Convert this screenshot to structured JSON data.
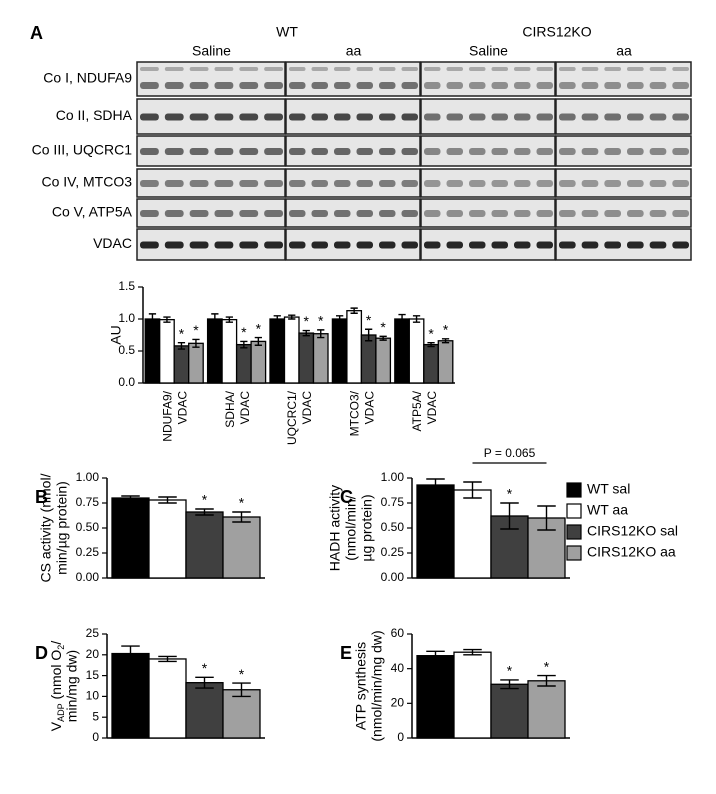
{
  "blot": {
    "panel": "A",
    "groups": [
      "WT",
      "CIRS12KO"
    ],
    "treatments": [
      "Saline",
      "aa",
      "Saline",
      "aa"
    ],
    "rows": [
      "Co I, NDUFA9",
      "Co II, SDHA",
      "Co III, UQCRC1",
      "Co IV, MTCO3",
      "Co V, ATP5A",
      "VDAC"
    ]
  },
  "legend": [
    {
      "name": "WT sal",
      "color": "#000000"
    },
    {
      "name": "WT aa",
      "color": "#ffffff"
    },
    {
      "name": "CIRS12KO sal",
      "color": "#404040"
    },
    {
      "name": "CIRS12KO aa",
      "color": "#a0a0a0"
    }
  ],
  "chart_data": [
    {
      "type": "bar",
      "ylabel": [
        "AU"
      ],
      "categories": [
        [
          "NDUFA9/",
          "VDAC"
        ],
        [
          "SDHA/",
          "VDAC"
        ],
        [
          "UQCRC1/",
          "VDAC"
        ],
        [
          "MTCO3/",
          "VDAC"
        ],
        [
          "ATP5A/",
          "VDAC"
        ]
      ],
      "series": [
        {
          "values": [
            1.0,
            1.0,
            1.0,
            1.0,
            1.0
          ],
          "errors": [
            0.08,
            0.08,
            0.05,
            0.05,
            0.07
          ]
        },
        {
          "values": [
            0.99,
            0.99,
            1.03,
            1.13,
            1.0
          ],
          "errors": [
            0.04,
            0.04,
            0.03,
            0.04,
            0.05
          ]
        },
        {
          "values": [
            0.58,
            0.6,
            0.78,
            0.75,
            0.6
          ],
          "errors": [
            0.05,
            0.05,
            0.04,
            0.09,
            0.03
          ],
          "annotations": [
            "*",
            "*",
            "*",
            "*",
            "*"
          ]
        },
        {
          "values": [
            0.62,
            0.65,
            0.77,
            0.7,
            0.66
          ],
          "errors": [
            0.06,
            0.06,
            0.06,
            0.03,
            0.03
          ],
          "annotations": [
            "*",
            "*",
            "*",
            "*",
            "*"
          ]
        }
      ],
      "ylim": [
        0,
        1.5
      ],
      "yticks": [
        {
          "value": 0,
          "label": "0.0"
        },
        0.5,
        {
          "value": 1,
          "label": "1.0"
        },
        1.5
      ]
    },
    {
      "type": "bar",
      "panel": "B",
      "ylabel": [
        "CS activity (nmol/",
        "min/µg protein)"
      ],
      "series": [
        {
          "values": [
            0.8
          ],
          "errors": [
            0.02
          ]
        },
        {
          "values": [
            0.78
          ],
          "errors": [
            0.03
          ]
        },
        {
          "values": [
            0.66
          ],
          "errors": [
            0.03
          ],
          "annotations": [
            "*"
          ]
        },
        {
          "values": [
            0.61
          ],
          "errors": [
            0.05
          ],
          "annotations": [
            "*"
          ]
        }
      ],
      "ylim": [
        0,
        1
      ],
      "yticks": [
        {
          "value": 0,
          "label": "0.00"
        },
        {
          "value": 0.25,
          "label": "0.25"
        },
        {
          "value": 0.5,
          "label": "0.50"
        },
        {
          "value": 0.75,
          "label": "0.75"
        },
        {
          "value": 1,
          "label": "1.00"
        }
      ]
    },
    {
      "type": "bar",
      "panel": "C",
      "ylabel": [
        "HADH activity",
        "(nmol/min/",
        "µg protein)"
      ],
      "series": [
        {
          "values": [
            0.93
          ],
          "errors": [
            0.06
          ]
        },
        {
          "values": [
            0.88
          ],
          "errors": [
            0.08
          ]
        },
        {
          "values": [
            0.62
          ],
          "errors": [
            0.13
          ],
          "annotations": [
            "*"
          ]
        },
        {
          "values": [
            0.6
          ],
          "errors": [
            0.12
          ]
        }
      ],
      "bracket": {
        "text": "P = 0.065",
        "series": [
          1,
          3
        ]
      },
      "ylim": [
        0,
        1
      ],
      "yticks": [
        {
          "value": 0,
          "label": "0.00"
        },
        {
          "value": 0.25,
          "label": "0.25"
        },
        {
          "value": 0.5,
          "label": "0.50"
        },
        {
          "value": 0.75,
          "label": "0.75"
        },
        {
          "value": 1,
          "label": "1.00"
        }
      ]
    },
    {
      "type": "bar",
      "panel": "D",
      "ylabel": [
        [
          {
            "text": "V"
          },
          {
            "text": "ADP",
            "sub": true
          },
          {
            "text": " (nmol O"
          },
          {
            "text": "2",
            "sub": true
          },
          {
            "text": "/"
          }
        ],
        "min/mg dw)"
      ],
      "series": [
        {
          "values": [
            20.3
          ],
          "errors": [
            1.8
          ]
        },
        {
          "values": [
            19
          ],
          "errors": [
            0.6
          ]
        },
        {
          "values": [
            13.3
          ],
          "errors": [
            1.3
          ],
          "annotations": [
            "*"
          ]
        },
        {
          "values": [
            11.6
          ],
          "errors": [
            1.6
          ],
          "annotations": [
            "*"
          ]
        }
      ],
      "ylim": [
        0,
        25
      ],
      "yticks": [
        0,
        5,
        10,
        15,
        20,
        25
      ]
    },
    {
      "type": "bar",
      "panel": "E",
      "ylabel": [
        "ATP synthesis",
        "(nmol/min/mg dw)"
      ],
      "series": [
        {
          "values": [
            47.5
          ],
          "errors": [
            2.5
          ]
        },
        {
          "values": [
            49.5
          ],
          "errors": [
            1.5
          ]
        },
        {
          "values": [
            31
          ],
          "errors": [
            2.5
          ],
          "annotations": [
            "*"
          ]
        },
        {
          "values": [
            33
          ],
          "errors": [
            3
          ],
          "annotations": [
            "*"
          ]
        }
      ],
      "ylim": [
        0,
        60
      ],
      "yticks": [
        0,
        20,
        40,
        60
      ]
    }
  ]
}
